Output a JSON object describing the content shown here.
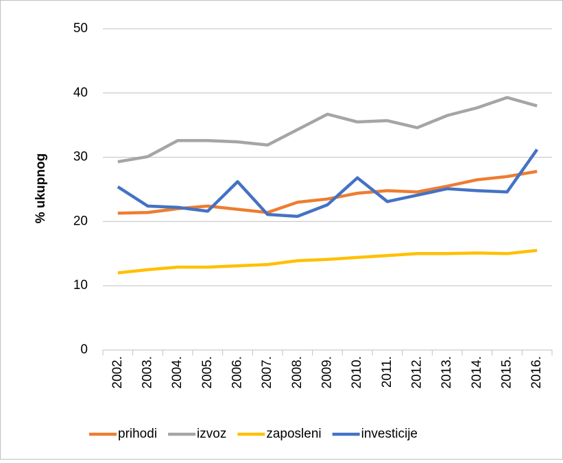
{
  "chart_data": {
    "type": "line",
    "y_label": "% ukupnog",
    "categories": [
      "2002.",
      "2003.",
      "2004.",
      "2005.",
      "2006.",
      "2007.",
      "2008.",
      "2009.",
      "2010.",
      "2011.",
      "2012.",
      "2013.",
      "2014.",
      "2015.",
      "2016."
    ],
    "series": [
      {
        "name": "prihodi",
        "color": "#ED7D31",
        "values": [
          21.3,
          21.4,
          22.0,
          22.4,
          21.9,
          21.4,
          23.0,
          23.5,
          24.4,
          24.8,
          24.6,
          25.5,
          26.5,
          27.0,
          27.8
        ]
      },
      {
        "name": "izvoz",
        "color": "#A5A5A5",
        "values": [
          29.3,
          30.1,
          32.6,
          32.6,
          32.4,
          31.9,
          34.3,
          36.7,
          35.5,
          35.7,
          34.6,
          36.5,
          37.7,
          39.3,
          38.0
        ]
      },
      {
        "name": "zaposleni",
        "color": "#FFC000",
        "values": [
          12.0,
          12.5,
          12.9,
          12.9,
          13.1,
          13.3,
          13.9,
          14.1,
          14.4,
          14.7,
          15.0,
          15.0,
          15.1,
          15.0,
          15.5
        ]
      },
      {
        "name": "investicije",
        "color": "#4472C4",
        "values": [
          25.4,
          22.4,
          22.2,
          21.6,
          26.2,
          21.1,
          20.8,
          22.6,
          26.8,
          23.1,
          24.1,
          25.1,
          24.8,
          24.6,
          31.2
        ]
      }
    ],
    "ylim": [
      0,
      50
    ],
    "yticks": [
      0,
      10,
      20,
      30,
      40,
      50
    ],
    "grid": true,
    "legend": "bottom"
  }
}
